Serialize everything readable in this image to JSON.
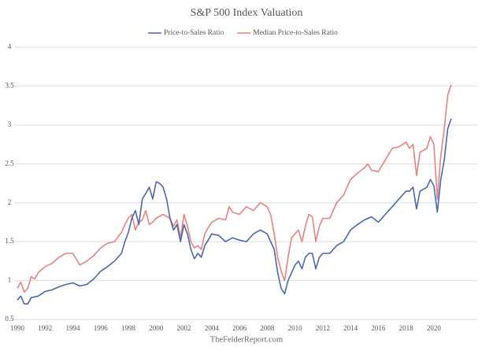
{
  "chart_data": {
    "type": "line",
    "title": "S&P 500 Index Valuation",
    "footer": "TheFelderReport.com",
    "ylim": [
      0.5,
      4
    ],
    "yticks": [
      0.5,
      1,
      1.5,
      2,
      2.5,
      3,
      3.5,
      4
    ],
    "grid": true,
    "xlim": [
      1990,
      2021.35
    ],
    "xticks": [
      1990,
      1992,
      1994,
      1996,
      1998,
      2000,
      2002,
      2004,
      2006,
      2008,
      2010,
      2012,
      2014,
      2016,
      2018,
      2020
    ],
    "legend": "top",
    "series": [
      {
        "name": "Price-to-Sales Ratio",
        "color": "#4a67ad",
        "x": [
          1990,
          1990.25,
          1990.5,
          1990.75,
          1991,
          1991.5,
          1992,
          1992.5,
          1993,
          1993.5,
          1994,
          1994.5,
          1995,
          1995.5,
          1996,
          1996.5,
          1997,
          1997.5,
          1997.75,
          1998,
          1998.25,
          1998.5,
          1998.75,
          1999,
          1999.25,
          1999.5,
          1999.75,
          2000,
          2000.25,
          2000.5,
          2000.75,
          2001,
          2001.25,
          2001.5,
          2001.75,
          2002,
          2002.25,
          2002.5,
          2002.75,
          2003,
          2003.25,
          2003.5,
          2003.75,
          2004,
          2004.5,
          2005,
          2005.5,
          2006,
          2006.5,
          2007,
          2007.5,
          2008,
          2008.25,
          2008.5,
          2008.75,
          2009,
          2009.25,
          2009.5,
          2009.75,
          2010,
          2010.25,
          2010.5,
          2010.75,
          2011,
          2011.25,
          2011.5,
          2011.75,
          2012,
          2012.5,
          2013,
          2013.5,
          2014,
          2014.5,
          2015,
          2015.5,
          2016,
          2016.5,
          2017,
          2017.5,
          2018,
          2018.25,
          2018.5,
          2018.75,
          2019,
          2019.5,
          2019.75,
          2020,
          2020.25,
          2020.5,
          2020.75,
          2021,
          2021.25
        ],
        "values": [
          0.75,
          0.8,
          0.7,
          0.7,
          0.78,
          0.8,
          0.86,
          0.88,
          0.92,
          0.95,
          0.97,
          0.93,
          0.95,
          1.02,
          1.12,
          1.18,
          1.25,
          1.35,
          1.5,
          1.62,
          1.8,
          1.9,
          1.72,
          2.05,
          2.12,
          2.2,
          2.05,
          2.27,
          2.25,
          2.2,
          2.05,
          1.8,
          1.65,
          1.72,
          1.5,
          1.72,
          1.6,
          1.4,
          1.28,
          1.35,
          1.3,
          1.45,
          1.52,
          1.6,
          1.58,
          1.5,
          1.55,
          1.52,
          1.5,
          1.6,
          1.65,
          1.6,
          1.5,
          1.4,
          1.1,
          0.9,
          0.83,
          1.0,
          1.1,
          1.2,
          1.25,
          1.15,
          1.3,
          1.35,
          1.35,
          1.15,
          1.3,
          1.35,
          1.35,
          1.45,
          1.5,
          1.65,
          1.72,
          1.78,
          1.82,
          1.75,
          1.85,
          1.95,
          2.05,
          2.15,
          2.15,
          2.2,
          1.92,
          2.15,
          2.2,
          2.3,
          2.22,
          1.88,
          2.3,
          2.55,
          2.95,
          3.08
        ]
      },
      {
        "name": "Median Price-to-Sales Ratio",
        "color": "#e8827f",
        "x": [
          1990,
          1990.25,
          1990.5,
          1990.75,
          1991,
          1991.25,
          1991.5,
          1992,
          1992.5,
          1993,
          1993.5,
          1994,
          1994.5,
          1995,
          1995.5,
          1996,
          1996.5,
          1997,
          1997.5,
          1997.75,
          1998,
          1998.25,
          1998.5,
          1998.75,
          1999,
          1999.25,
          1999.5,
          1999.75,
          2000,
          2000.5,
          2001,
          2001.25,
          2001.5,
          2001.75,
          2002,
          2002.25,
          2002.5,
          2002.75,
          2003,
          2003.25,
          2003.5,
          2003.75,
          2004,
          2004.5,
          2005,
          2005.25,
          2005.5,
          2006,
          2006.5,
          2007,
          2007.5,
          2008,
          2008.25,
          2008.5,
          2008.75,
          2009,
          2009.25,
          2009.5,
          2009.75,
          2010,
          2010.25,
          2010.5,
          2010.75,
          2011,
          2011.25,
          2011.5,
          2011.75,
          2012,
          2012.5,
          2013,
          2013.5,
          2014,
          2014.5,
          2015,
          2015.25,
          2015.5,
          2016,
          2016.5,
          2017,
          2017.5,
          2018,
          2018.25,
          2018.5,
          2018.75,
          2019,
          2019.5,
          2019.75,
          2020,
          2020.25,
          2020.5,
          2020.75,
          2021,
          2021.25
        ],
        "values": [
          0.9,
          0.98,
          0.85,
          0.9,
          1.05,
          1.02,
          1.1,
          1.18,
          1.22,
          1.3,
          1.35,
          1.35,
          1.2,
          1.25,
          1.32,
          1.42,
          1.48,
          1.5,
          1.62,
          1.72,
          1.8,
          1.85,
          1.65,
          1.75,
          1.78,
          1.9,
          1.72,
          1.75,
          1.8,
          1.85,
          1.8,
          1.7,
          1.78,
          1.55,
          1.85,
          1.7,
          1.5,
          1.42,
          1.45,
          1.4,
          1.6,
          1.68,
          1.75,
          1.8,
          1.78,
          1.95,
          1.88,
          1.85,
          1.95,
          1.9,
          2.0,
          1.95,
          1.85,
          1.6,
          1.3,
          1.12,
          1.0,
          1.3,
          1.55,
          1.6,
          1.65,
          1.5,
          1.7,
          1.85,
          1.82,
          1.5,
          1.7,
          1.8,
          1.8,
          2.0,
          2.1,
          2.3,
          2.38,
          2.45,
          2.5,
          2.42,
          2.4,
          2.55,
          2.7,
          2.72,
          2.78,
          2.7,
          2.75,
          2.35,
          2.65,
          2.7,
          2.85,
          2.75,
          2.05,
          2.6,
          2.95,
          3.38,
          3.52
        ]
      }
    ]
  }
}
